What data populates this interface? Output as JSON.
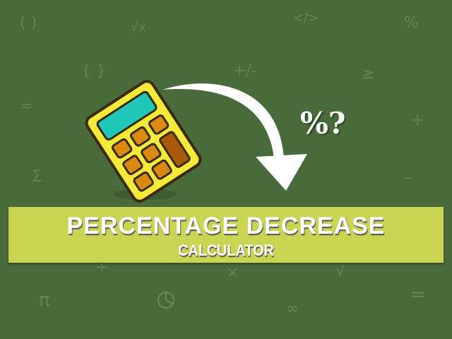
{
  "title": "PERCENTAGE DECREASE",
  "subtitle": "CALCULATOR",
  "badge": "%?",
  "background_symbols": [
    "( )",
    "√x",
    "</>",
    "%",
    "{ }",
    "+/-",
    "≥",
    "≈",
    "+",
    "Σ",
    "−",
    "÷",
    "×",
    "√",
    "∫",
    "π",
    "∞",
    "="
  ],
  "colors": {
    "background": "#496a3b",
    "banner": "#c9d452",
    "calculator_body": "#f5ea3a",
    "screen": "#1fc7b8",
    "keys": "#d98a10",
    "tall_key": "#a85a08"
  }
}
